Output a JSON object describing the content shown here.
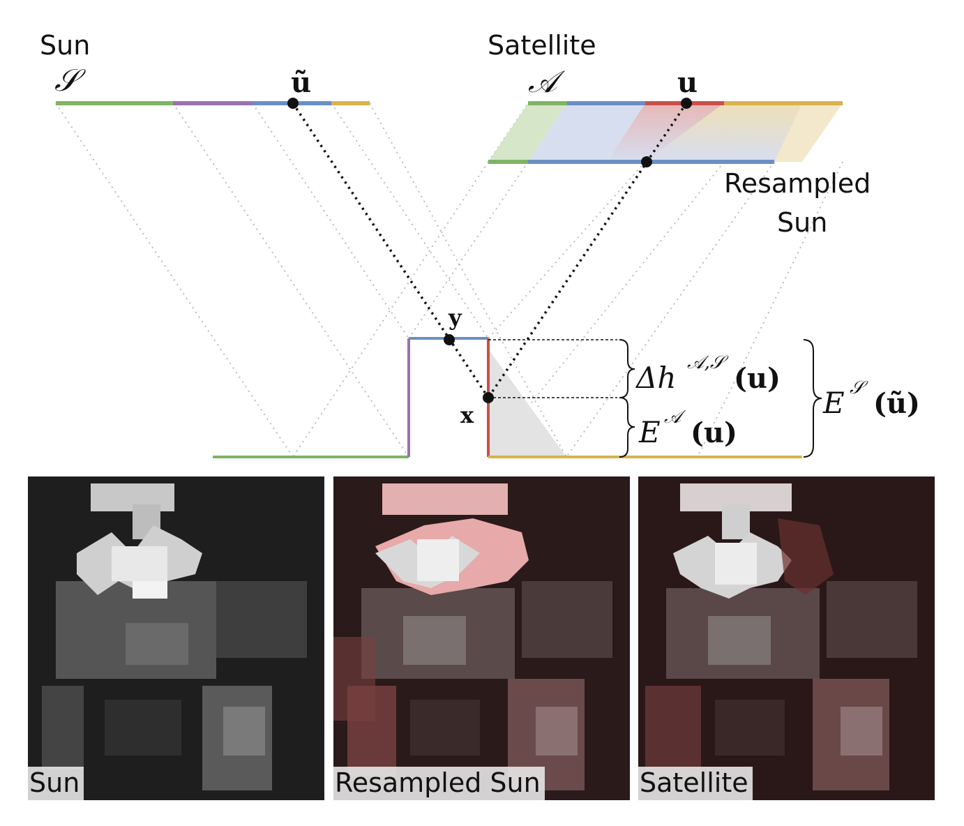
{
  "labels": {
    "sun": "Sun",
    "sun_symbol": "𝒮",
    "u_tilde": "ũ",
    "satellite": "Satellite",
    "satellite_symbol": "𝒜",
    "u": "u",
    "resampled_sun_line1": "Resampled",
    "resampled_sun_line2": "Sun",
    "y": "y",
    "x": "x"
  },
  "equations": {
    "delta_h_base": "Δh",
    "delta_h_sup": "𝒜,𝒮",
    "delta_h_arg": "(u)",
    "e_a_base": "E",
    "e_a_sup": "𝒜",
    "e_a_arg": "(u)",
    "e_s_base": "E",
    "e_s_sup": "𝒮",
    "e_s_arg": "(ũ)"
  },
  "colors": {
    "green": "#7fb464",
    "purple": "#9a72ad",
    "blue": "#6a8fc4",
    "red": "#c9504a",
    "yellow": "#d8b24e",
    "shadow": "#e3e3e3",
    "overlay_red": "#c03a3a"
  },
  "panels": [
    {
      "caption": "Sun",
      "tint": false
    },
    {
      "caption": "Resampled Sun",
      "tint": true
    },
    {
      "caption": "Satellite",
      "tint": true
    }
  ]
}
